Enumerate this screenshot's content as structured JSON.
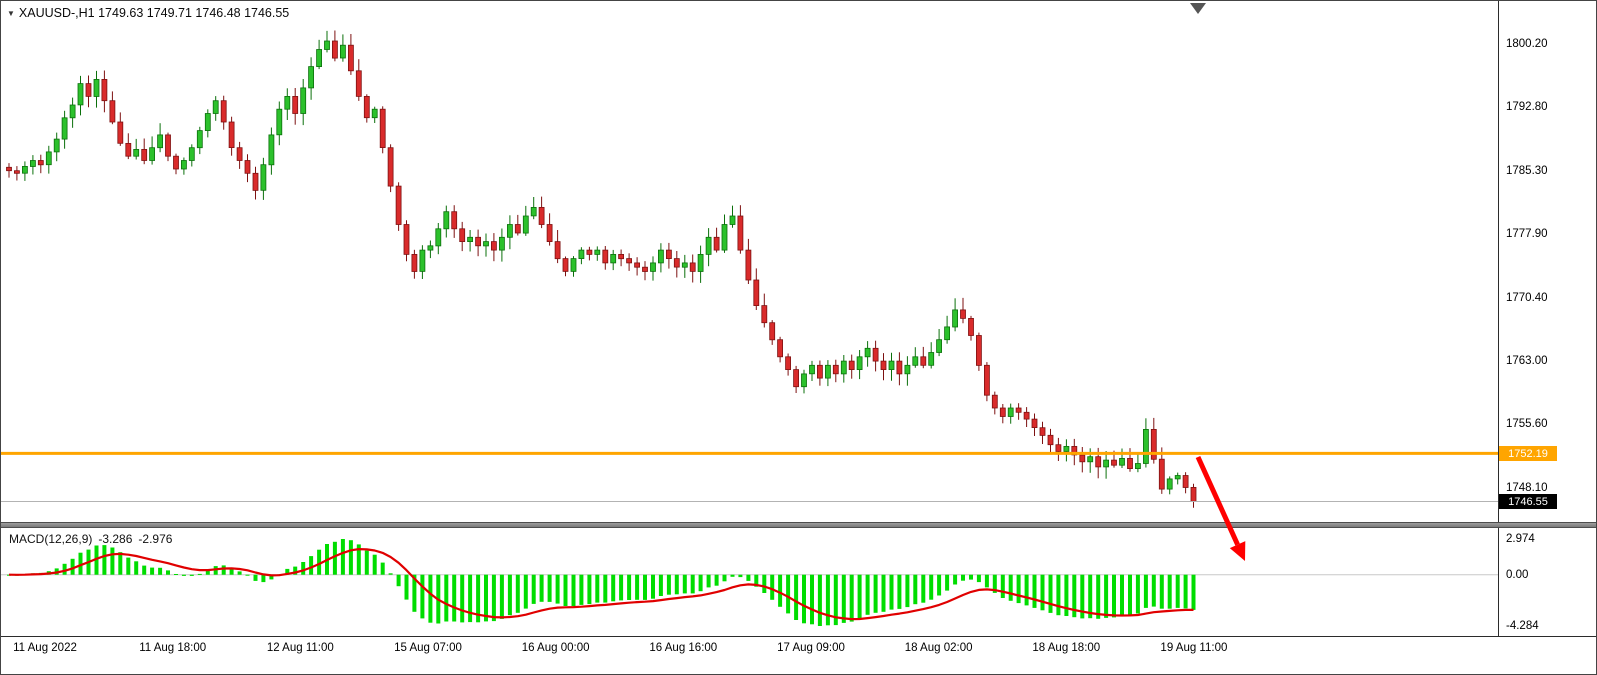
{
  "window": {
    "title_text": "XAUUSD-,H1 1749.63 1749.71 1746.48 1746.55",
    "symbol": "XAUUSD-",
    "timeframe": "H1",
    "ohlc": {
      "open": "1749.63",
      "high": "1749.71",
      "low": "1746.48",
      "close": "1746.55"
    }
  },
  "icons": {
    "dropdown_marker": "▼"
  },
  "chart_data": [
    {
      "type": "candlestick",
      "symbol": "XAUUSD-",
      "timeframe": "H1",
      "ylim": [
        1744.5,
        1801.9
      ],
      "y_ticks": [
        "1800.20",
        "1792.80",
        "1785.30",
        "1777.90",
        "1770.40",
        "1763.00",
        "1755.60",
        "1748.10"
      ],
      "x_ticks": [
        "11 Aug 2022",
        "11 Aug 18:00",
        "12 Aug 11:00",
        "15 Aug 07:00",
        "16 Aug 00:00",
        "16 Aug 16:00",
        "17 Aug 09:00",
        "18 Aug 02:00",
        "18 Aug 18:00",
        "19 Aug 11:00"
      ],
      "closes": [
        1785.3,
        1785.0,
        1785.8,
        1786.5,
        1786.0,
        1787.5,
        1789.0,
        1791.5,
        1793.0,
        1795.5,
        1794.0,
        1796.0,
        1793.5,
        1791.0,
        1788.5,
        1787.0,
        1787.8,
        1786.5,
        1788.0,
        1789.5,
        1787.0,
        1785.5,
        1786.5,
        1788.0,
        1790.0,
        1792.0,
        1793.5,
        1791.0,
        1788.0,
        1786.5,
        1785.0,
        1783.0,
        1786.0,
        1789.5,
        1792.5,
        1794.0,
        1792.0,
        1795.0,
        1797.5,
        1799.5,
        1800.5,
        1798.5,
        1800.0,
        1797.0,
        1794.0,
        1791.5,
        1792.5,
        1788.0,
        1783.5,
        1779.0,
        1775.5,
        1773.5,
        1776.0,
        1776.5,
        1778.5,
        1780.5,
        1778.5,
        1777.0,
        1777.5,
        1776.5,
        1777.0,
        1776.0,
        1777.5,
        1779.0,
        1778.0,
        1780.0,
        1781.0,
        1779.0,
        1777.0,
        1775.0,
        1773.5,
        1775.0,
        1776.0,
        1775.5,
        1776.0,
        1774.5,
        1775.5,
        1775.0,
        1774.5,
        1774.0,
        1773.5,
        1774.5,
        1776.0,
        1775.0,
        1774.0,
        1774.5,
        1773.5,
        1775.5,
        1777.5,
        1776.0,
        1779.0,
        1780.0,
        1776.0,
        1772.5,
        1769.5,
        1767.5,
        1765.5,
        1763.5,
        1762.0,
        1760.0,
        1761.5,
        1762.5,
        1761.0,
        1762.5,
        1761.5,
        1763.0,
        1762.0,
        1763.5,
        1764.5,
        1763.0,
        1762.0,
        1763.0,
        1761.5,
        1762.5,
        1763.5,
        1762.5,
        1764.0,
        1765.5,
        1767.0,
        1769.0,
        1768.0,
        1766.0,
        1762.5,
        1759.0,
        1757.5,
        1756.5,
        1757.5,
        1757.0,
        1756.2,
        1755.2,
        1754.3,
        1753.2,
        1752.4,
        1753.0,
        1752.0,
        1751.2,
        1751.8,
        1750.6,
        1751.4,
        1750.8,
        1751.6,
        1750.4,
        1751.0,
        1755.0,
        1751.5,
        1748.0,
        1749.2,
        1749.6,
        1748.2,
        1746.55
      ],
      "horizontal_line": {
        "price": 1752.19,
        "label": "1752.19",
        "color": "#ffa500"
      },
      "current_price": {
        "price": 1746.55,
        "label": "1746.55"
      },
      "annotations": [
        {
          "type": "arrow",
          "color": "#ff0000",
          "direction": "down-right"
        }
      ]
    },
    {
      "type": "macd",
      "label": "MACD(12,26,9)",
      "params": [
        12,
        26,
        9
      ],
      "value_main": "-3.286",
      "value_signal": "-2.976",
      "y_ticks": [
        "2.974",
        "0.00",
        "-4.284"
      ],
      "histogram_color": "#00dd00",
      "signal_color": "#e00000"
    }
  ],
  "colors": {
    "background": "#ffffff",
    "candle_up": "#2cc12c",
    "candle_up_border": "#0b700b",
    "candle_down": "#d92b2b",
    "candle_down_border": "#7d1111",
    "hline": "#ffa500",
    "current_price_line": "#b3b3b3",
    "badge_hline_bg": "#ffa500",
    "badge_price_bg": "#000000",
    "badge_text": "#ffffff",
    "histogram": "#00dd00",
    "signal": "#e00000",
    "arrow": "#ff0000",
    "axis_text": "#000000"
  }
}
